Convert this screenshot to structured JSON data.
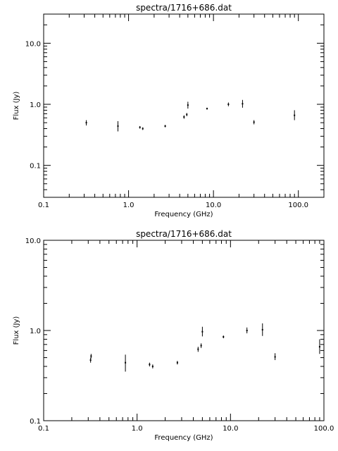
{
  "chart_data": [
    {
      "type": "scatter",
      "title": "spectra/1716+686.dat",
      "xlabel": "Frequency (GHz)",
      "ylabel": "Flux (Jy)",
      "xscale": "log",
      "yscale": "log",
      "xlim": [
        0.1,
        200
      ],
      "ylim": [
        0.03,
        30
      ],
      "grid": false,
      "xticks": [
        {
          "value": 0.1,
          "label": "0.1"
        },
        {
          "value": 1,
          "label": "1.0"
        },
        {
          "value": 10,
          "label": "10.0"
        },
        {
          "value": 100,
          "label": "100.0"
        }
      ],
      "yticks": [
        {
          "value": 0.1,
          "label": "0.1"
        },
        {
          "value": 1,
          "label": "1.0"
        },
        {
          "value": 10,
          "label": "10.0"
        }
      ],
      "points": [
        {
          "x": 0.318,
          "y": 0.5,
          "ylo": 0.45,
          "yhi": 0.55
        },
        {
          "x": 0.75,
          "y": 0.44,
          "ylo": 0.36,
          "yhi": 0.53
        },
        {
          "x": 1.36,
          "y": 0.42,
          "ylo": 0.4,
          "yhi": 0.44
        },
        {
          "x": 1.47,
          "y": 0.4,
          "ylo": 0.38,
          "yhi": 0.42
        },
        {
          "x": 2.7,
          "y": 0.44,
          "ylo": 0.42,
          "yhi": 0.46
        },
        {
          "x": 4.5,
          "y": 0.62,
          "ylo": 0.58,
          "yhi": 0.66
        },
        {
          "x": 4.85,
          "y": 0.68,
          "ylo": 0.64,
          "yhi": 0.72
        },
        {
          "x": 5.0,
          "y": 0.97,
          "ylo": 0.85,
          "yhi": 1.1
        },
        {
          "x": 8.4,
          "y": 0.85,
          "ylo": 0.82,
          "yhi": 0.88
        },
        {
          "x": 15.0,
          "y": 1.0,
          "ylo": 0.93,
          "yhi": 1.07
        },
        {
          "x": 22.0,
          "y": 1.02,
          "ylo": 0.88,
          "yhi": 1.18
        },
        {
          "x": 30.0,
          "y": 0.51,
          "ylo": 0.47,
          "yhi": 0.55
        },
        {
          "x": 90.0,
          "y": 0.66,
          "ylo": 0.55,
          "yhi": 0.8
        }
      ]
    },
    {
      "type": "scatter",
      "title": "spectra/1716+686.dat",
      "xlabel": "Frequency (GHz)",
      "ylabel": "Flux (Jy)",
      "xscale": "log",
      "yscale": "log",
      "xlim": [
        0.1,
        100
      ],
      "ylim": [
        0.1,
        10
      ],
      "grid": false,
      "xticks": [
        {
          "value": 0.1,
          "label": "0.1"
        },
        {
          "value": 1,
          "label": "1.0"
        },
        {
          "value": 10,
          "label": "10.0"
        },
        {
          "value": 100,
          "label": "100.0"
        }
      ],
      "yticks": [
        {
          "value": 0.1,
          "label": "0.1"
        },
        {
          "value": 1,
          "label": "1.0"
        },
        {
          "value": 10,
          "label": "10.0"
        }
      ],
      "points": [
        {
          "x": 0.318,
          "y": 0.47,
          "ylo": 0.44,
          "yhi": 0.5
        },
        {
          "x": 0.322,
          "y": 0.52,
          "ylo": 0.49,
          "yhi": 0.55
        },
        {
          "x": 0.75,
          "y": 0.44,
          "ylo": 0.35,
          "yhi": 0.54
        },
        {
          "x": 1.36,
          "y": 0.42,
          "ylo": 0.4,
          "yhi": 0.44
        },
        {
          "x": 1.47,
          "y": 0.4,
          "ylo": 0.38,
          "yhi": 0.42
        },
        {
          "x": 2.7,
          "y": 0.44,
          "ylo": 0.42,
          "yhi": 0.46
        },
        {
          "x": 4.5,
          "y": 0.62,
          "ylo": 0.58,
          "yhi": 0.66
        },
        {
          "x": 4.85,
          "y": 0.68,
          "ylo": 0.64,
          "yhi": 0.72
        },
        {
          "x": 5.0,
          "y": 0.97,
          "ylo": 0.86,
          "yhi": 1.1
        },
        {
          "x": 8.4,
          "y": 0.85,
          "ylo": 0.82,
          "yhi": 0.88
        },
        {
          "x": 15.0,
          "y": 1.0,
          "ylo": 0.93,
          "yhi": 1.08
        },
        {
          "x": 22.0,
          "y": 1.02,
          "ylo": 0.87,
          "yhi": 1.2
        },
        {
          "x": 30.0,
          "y": 0.51,
          "ylo": 0.47,
          "yhi": 0.56
        },
        {
          "x": 90.0,
          "y": 0.66,
          "ylo": 0.55,
          "yhi": 0.8
        }
      ]
    }
  ]
}
